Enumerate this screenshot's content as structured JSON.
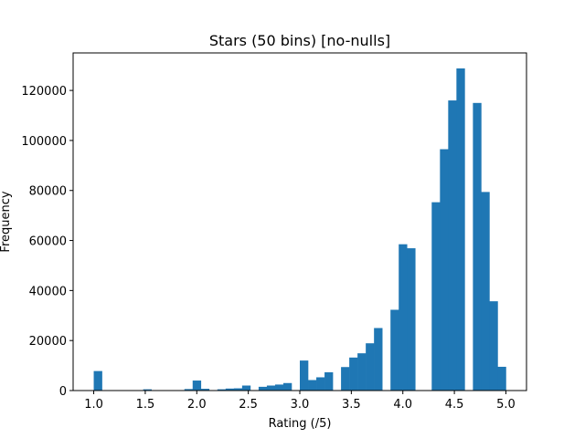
{
  "chart_data": {
    "type": "bar",
    "title": "Stars (50 bins) [no-nulls]",
    "xlabel": "Rating (/5)",
    "ylabel": "Frequency",
    "xlim": [
      0.8,
      5.2
    ],
    "ylim": [
      0,
      135000
    ],
    "xticks": [
      "1.0",
      "1.5",
      "2.0",
      "2.5",
      "3.0",
      "3.5",
      "4.0",
      "4.5",
      "5.0"
    ],
    "yticks": [
      "0",
      "20000",
      "40000",
      "60000",
      "80000",
      "100000",
      "120000"
    ],
    "grid": false,
    "color": "#1f77b4",
    "bin_start": 1.0,
    "bin_end": 5.0,
    "bins": 50,
    "values": [
      7800,
      0,
      0,
      0,
      0,
      0,
      500,
      0,
      0,
      0,
      0,
      600,
      4000,
      700,
      0,
      500,
      800,
      900,
      2000,
      0,
      1500,
      2000,
      2400,
      3000,
      0,
      12000,
      4200,
      5300,
      7300,
      0,
      9400,
      13200,
      14900,
      18900,
      25000,
      0,
      32300,
      58500,
      56900,
      0,
      0,
      75300,
      96500,
      116000,
      128800,
      0,
      115000,
      79400,
      35700,
      9500
    ]
  }
}
